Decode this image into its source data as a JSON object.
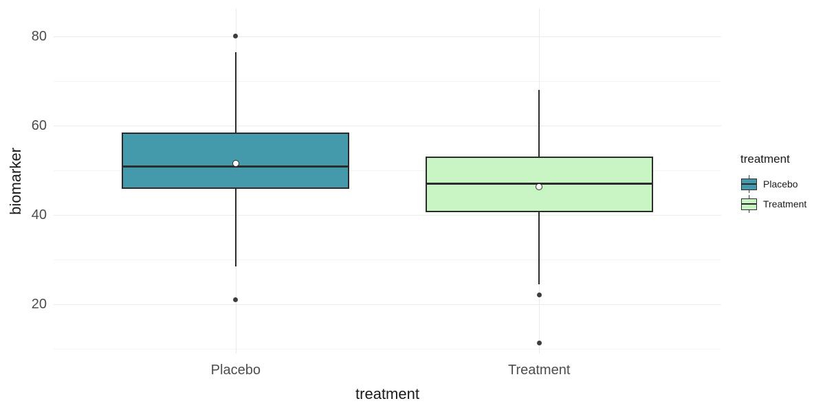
{
  "chart_data": {
    "type": "boxplot",
    "title": "",
    "xlabel": "treatment",
    "ylabel": "biomarker",
    "ylim": [
      8.9,
      86.3
    ],
    "y_major_ticks": [
      20,
      40,
      60,
      80
    ],
    "y_minor_ticks": [
      10,
      30,
      50,
      70
    ],
    "categories": [
      "Placebo",
      "Treatment"
    ],
    "series": [
      {
        "name": "Placebo",
        "fill": "#4499ab",
        "q1": 45.8,
        "median": 50.8,
        "q3": 58.5,
        "whisker_low": 28.5,
        "whisker_high": 76.5,
        "mean": 51.6,
        "outliers": [
          80,
          21
        ]
      },
      {
        "name": "Treatment",
        "fill": "#c8f5c3",
        "q1": 40.6,
        "median": 47,
        "q3": 53,
        "whisker_low": 24.5,
        "whisker_high": 68,
        "mean": 46.3,
        "outliers": [
          22,
          11.3
        ]
      }
    ],
    "legend": {
      "title": "treatment",
      "position": "right",
      "entries": [
        "Placebo",
        "Treatment"
      ]
    },
    "grid": true,
    "colors": {
      "box_border": "#2b2b2b",
      "median": "#2b2b2b",
      "whisker": "#2b2b2b",
      "outlier": "#3d3d3d",
      "mean_fill": "#ffffff",
      "mean_border": "#2b2b2b",
      "grid_major": "#ebebeb",
      "grid_minor": "#f4f4f4",
      "tick_label": "#4d4d4d",
      "axis_title": "#1a1a1a",
      "legend_text": "#1a1a1a",
      "background": "#ffffff"
    }
  }
}
